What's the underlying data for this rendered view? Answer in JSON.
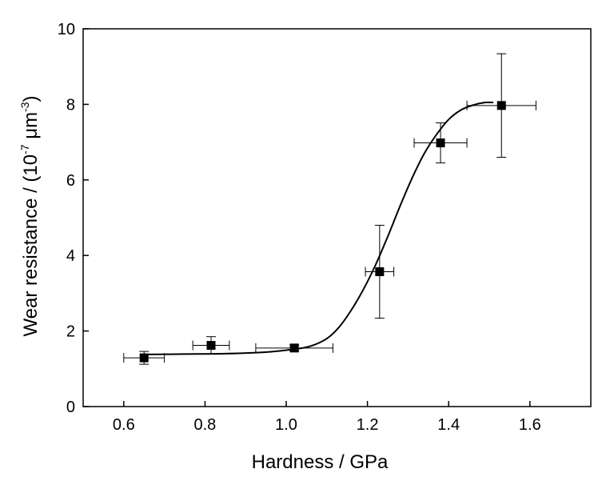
{
  "chart_data": {
    "type": "scatter",
    "xlabel": "Hardness / GPa",
    "ylabel": {
      "prefix": "Wear resistance / (10",
      "exp1": "-7",
      "mid": " μm",
      "exp2": "-3",
      "suffix": ")"
    },
    "xlim": [
      0.5,
      1.75
    ],
    "ylim": [
      0,
      10
    ],
    "xticks": [
      "0.6",
      "0.8",
      "1.0",
      "1.2",
      "1.4",
      "1.6"
    ],
    "yticks": [
      "0",
      "2",
      "4",
      "6",
      "8",
      "10"
    ],
    "grid": false,
    "legend": "none",
    "points": [
      {
        "x": 0.65,
        "y": 1.29,
        "xerr": 0.05,
        "yerr": 0.17
      },
      {
        "x": 0.815,
        "y": 1.62,
        "xerr": 0.045,
        "yerr": 0.23
      },
      {
        "x": 1.02,
        "y": 1.55,
        "xerr": 0.095,
        "yerr": 0.08
      },
      {
        "x": 1.23,
        "y": 3.57,
        "xerr": 0.035,
        "yerr": 1.23
      },
      {
        "x": 1.38,
        "y": 6.98,
        "xerr": 0.065,
        "yerr": 0.53
      },
      {
        "x": 1.53,
        "y": 7.97,
        "xerr": 0.085,
        "yerr": 1.37
      }
    ],
    "fit_curve": {
      "x": [
        0.65,
        0.75,
        0.85,
        0.95,
        1.02,
        1.06,
        1.1,
        1.13,
        1.16,
        1.19,
        1.22,
        1.25,
        1.28,
        1.31,
        1.34,
        1.37,
        1.4,
        1.43,
        1.46,
        1.49,
        1.51
      ],
      "y": [
        1.38,
        1.39,
        1.4,
        1.44,
        1.52,
        1.6,
        1.8,
        2.1,
        2.55,
        3.1,
        3.75,
        4.5,
        5.3,
        6.05,
        6.7,
        7.2,
        7.6,
        7.85,
        7.98,
        8.05,
        8.05
      ]
    }
  }
}
